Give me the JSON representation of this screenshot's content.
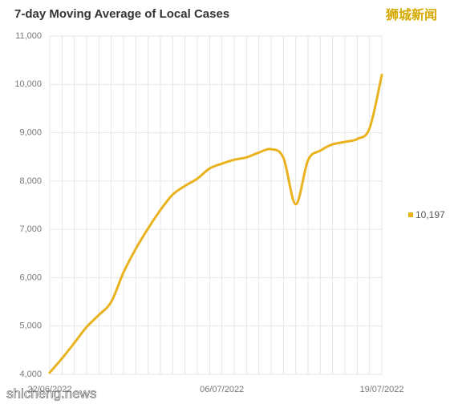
{
  "chart_data": {
    "type": "line",
    "title": "7-day Moving Average of Local Cases",
    "watermarks": [
      "狮城新闻",
      "shicheng.news"
    ],
    "categories": [
      "22/06/2022",
      null,
      null,
      null,
      null,
      null,
      null,
      null,
      null,
      null,
      null,
      null,
      null,
      null,
      "06/07/2022",
      null,
      null,
      null,
      null,
      null,
      null,
      null,
      null,
      null,
      null,
      null,
      null,
      "19/07/2022"
    ],
    "values": [
      4035,
      4330,
      4650,
      4980,
      5230,
      5500,
      6110,
      6600,
      7020,
      7400,
      7720,
      7900,
      8050,
      8260,
      8360,
      8440,
      8490,
      8590,
      8660,
      8480,
      7520,
      8430,
      8630,
      8760,
      8810,
      8870,
      9090,
      10197
    ],
    "value_labels": [
      null,
      null,
      null,
      null,
      null,
      null,
      null,
      null,
      null,
      null,
      null,
      null,
      null,
      null,
      null,
      null,
      null,
      null,
      null,
      null,
      null,
      null,
      null,
      null,
      null,
      null,
      null,
      "10,197"
    ],
    "color": "#e9b21f",
    "ylim": [
      4000,
      11000
    ],
    "yticks": [
      {
        "value": 4000,
        "label": "4,000"
      },
      {
        "value": 5000,
        "label": "5,000"
      },
      {
        "value": 6000,
        "label": "6,000"
      },
      {
        "value": 7000,
        "label": "7,000"
      },
      {
        "value": 8000,
        "label": "8,000"
      },
      {
        "value": 9000,
        "label": "9,000"
      },
      {
        "value": 10000,
        "label": "10,000"
      },
      {
        "value": 11000,
        "label": "11,000"
      }
    ],
    "grid": true
  }
}
